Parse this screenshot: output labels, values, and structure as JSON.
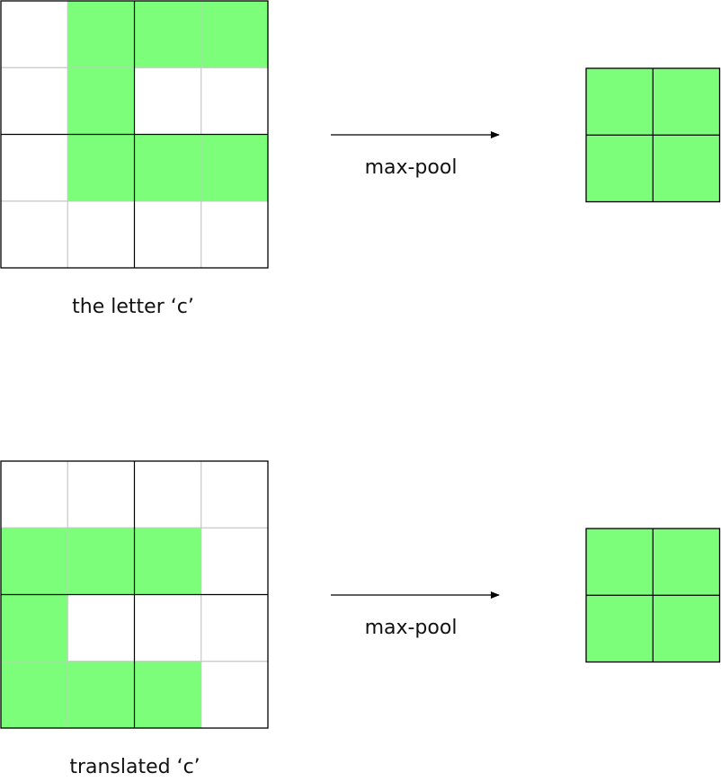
{
  "colors": {
    "fill": "#7dfe7b",
    "major_line": "#000000",
    "minor_line": "#c8c8c8",
    "arrow": "#000000"
  },
  "panels": [
    {
      "caption": "the letter ‘c’",
      "operation": "max-pool",
      "input_grid": [
        [
          0,
          1,
          1,
          1
        ],
        [
          0,
          1,
          0,
          0
        ],
        [
          0,
          1,
          1,
          1
        ],
        [
          0,
          0,
          0,
          0
        ]
      ],
      "output_grid": [
        [
          1,
          1
        ],
        [
          1,
          1
        ]
      ]
    },
    {
      "caption": "translated ‘c’",
      "operation": "max-pool",
      "input_grid": [
        [
          0,
          0,
          0,
          0
        ],
        [
          1,
          1,
          1,
          0
        ],
        [
          1,
          0,
          0,
          0
        ],
        [
          1,
          1,
          1,
          0
        ]
      ],
      "output_grid": [
        [
          1,
          1
        ],
        [
          1,
          1
        ]
      ]
    }
  ]
}
